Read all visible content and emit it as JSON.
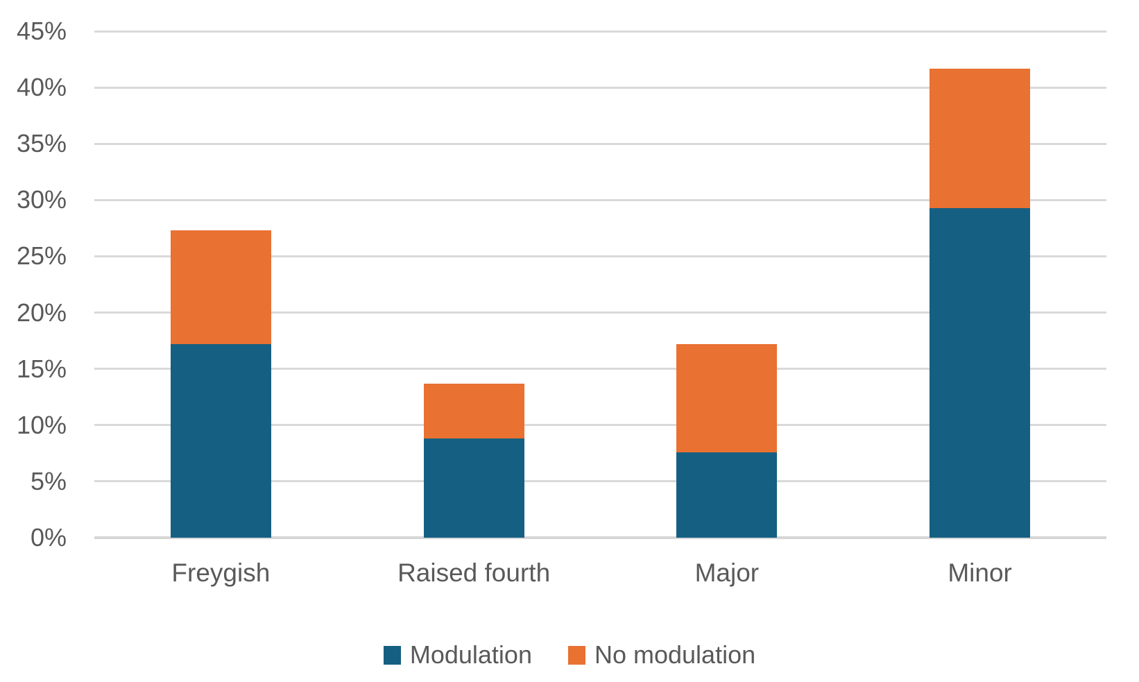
{
  "chart_data": {
    "type": "bar",
    "stacked": true,
    "title": "",
    "xlabel": "",
    "ylabel": "",
    "categories": [
      "Freygish",
      "Raised fourth",
      "Major",
      "Minor"
    ],
    "series": [
      {
        "name": "Modulation",
        "color": "#156082",
        "values": [
          17.2,
          8.8,
          7.6,
          29.3
        ]
      },
      {
        "name": "No modulation",
        "color": "#E97132",
        "values": [
          10.1,
          4.9,
          9.6,
          12.4
        ]
      }
    ],
    "stack_totals": [
      27.3,
      13.7,
      17.2,
      41.7
    ],
    "y_axis": {
      "min": 0,
      "max": 45,
      "step": 5,
      "tick_labels": [
        "0%",
        "5%",
        "10%",
        "15%",
        "20%",
        "25%",
        "30%",
        "35%",
        "40%",
        "45%"
      ]
    },
    "grid": true,
    "legend_position": "bottom"
  },
  "legend": {
    "items": [
      {
        "label": "Modulation"
      },
      {
        "label": "No modulation"
      }
    ]
  },
  "colors": {
    "background": "#FFFFFF",
    "gridline": "#D9D9D9",
    "axis_text": "#595959",
    "series_modulation": "#156082",
    "series_no_modulation": "#E97132"
  }
}
